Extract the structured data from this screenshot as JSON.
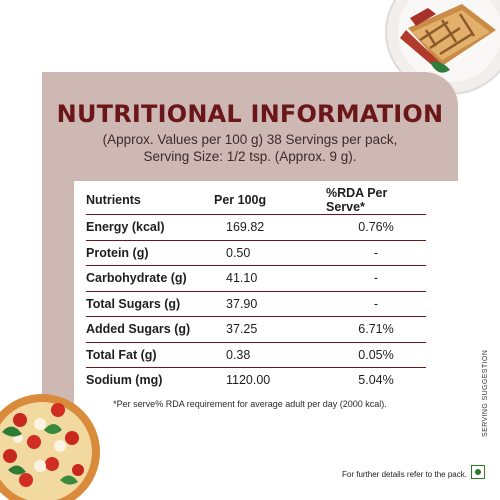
{
  "title": "NUTRITIONAL INFORMATION",
  "subtitle_line1": "(Approx. Values per 100 g) 38 Servings per pack,",
  "subtitle_line2": "Serving Size: 1/2 tsp. (Approx. 9 g).",
  "table": {
    "headers": [
      "Nutrients",
      "Per 100g",
      "%RDA Per Serve*"
    ],
    "rows": [
      [
        "Energy (kcal)",
        "169.82",
        "0.76%"
      ],
      [
        "Protein (g)",
        "0.50",
        "-"
      ],
      [
        "Carbohydrate (g)",
        "41.10",
        "-"
      ],
      [
        "Total Sugars (g)",
        "37.90",
        "-"
      ],
      [
        "Added Sugars (g)",
        "37.25",
        "6.71%"
      ],
      [
        "Total Fat (g)",
        "0.38",
        "0.05%"
      ],
      [
        "Sodium (mg)",
        "1120.00",
        "5.04%"
      ]
    ]
  },
  "footnote": "*Per serve% RDA requirement for average adult per day (2000 kcal).",
  "further_details": "For further details refer to the pack.",
  "serving_suggestion": "SERVING SUGGESTION",
  "colors": {
    "title": "#6b1618",
    "card_background": "#cdb8b4",
    "rule": "#6b1618",
    "veg_mark": "#2a7b2a"
  },
  "images": [
    "grilled-sandwich-plate",
    "pizza"
  ],
  "icons": [
    "vegetarian-mark-icon"
  ]
}
